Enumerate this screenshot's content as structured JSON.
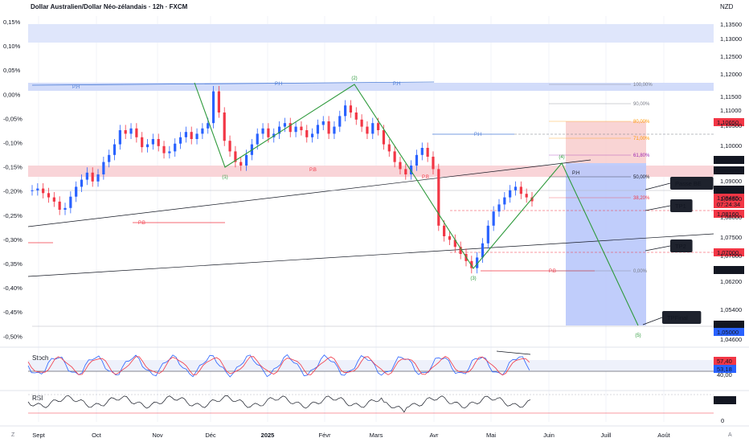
{
  "header": {
    "title": "Dollar Australien/Dollar Néo-zélandais · 12h · FXCM",
    "currency": "NZD"
  },
  "chart_data": {
    "type": "candlestick",
    "symbol": "AUDNZD",
    "timeframe": "12h",
    "x_ticks": [
      "Sept",
      "Oct",
      "Nov",
      "Déc",
      "2025",
      "Févr",
      "Mars",
      "Avr",
      "Mai",
      "Juin",
      "Juill",
      "Août"
    ],
    "left_axis": [
      "0,15%",
      "0,10%",
      "0,05%",
      "0,00%",
      "-0,05%",
      "-0,10%",
      "-0,15%",
      "-0,20%",
      "-0,25%",
      "-0,30%",
      "-0,35%",
      "-0,40%",
      "-0,45%",
      "-0,50%"
    ],
    "right_axis": [
      "1,13500",
      "1,13000",
      "1,12500",
      "1,12000",
      "1,11500",
      "1,11000",
      "1,10500",
      "1,10000",
      "1,09500",
      "1,09000",
      "1,08500",
      "1,08000",
      "1,07500",
      "1,07000",
      "1,06500",
      "1,06200",
      "1,05400",
      "1,05000",
      "1,04600"
    ],
    "price_tags": [
      {
        "label": "1,10650",
        "color": "#f23645"
      },
      {
        "label": "1,09540",
        "color": "#131722"
      },
      {
        "label": "1,09229",
        "color": "#131722"
      },
      {
        "label": "1,08742",
        "color": "#131722"
      },
      {
        "label": "1,08485",
        "color": "#f23645"
      },
      {
        "label": "07:24:34",
        "color": "#f23645"
      },
      {
        "label": "1,08160",
        "color": "#f23645"
      },
      {
        "label": "1,07000",
        "color": "#f23645"
      },
      {
        "label": "1,06500",
        "color": "#131722"
      },
      {
        "label": "1,05000",
        "color": "#131722"
      },
      {
        "label": "1,05000",
        "color": "#2962ff"
      }
    ],
    "close_series": [
      1.088,
      1.0885,
      1.0872,
      1.086,
      1.0848,
      1.0825,
      1.083,
      1.0862,
      1.089,
      1.091,
      1.093,
      1.0905,
      1.0925,
      1.096,
      1.098,
      1.101,
      1.105,
      1.104,
      1.1055,
      1.103,
      1.1002,
      1.101,
      1.1025,
      1.1005,
      1.0985,
      1.099,
      1.1012,
      1.103,
      1.1045,
      1.1025,
      1.104,
      1.1055,
      1.107,
      1.116,
      1.11,
      1.102,
      1.099,
      1.096,
      1.095,
      1.098,
      1.101,
      1.104,
      1.1055,
      1.103,
      1.104,
      1.106,
      1.107,
      1.1045,
      1.106,
      1.105,
      1.103,
      1.104,
      1.1065,
      1.1075,
      1.104,
      1.106,
      1.109,
      1.112,
      1.11,
      1.108,
      1.106,
      1.104,
      1.107,
      1.105,
      1.101,
      1.099,
      1.096,
      1.094,
      1.0925,
      1.095,
      1.098,
      1.1,
      1.0975,
      1.094,
      1.078,
      1.075,
      1.074,
      1.072,
      1.07,
      1.068,
      1.066,
      1.069,
      1.073,
      1.078,
      1.082,
      1.084,
      1.086,
      1.088,
      1.089,
      1.087,
      1.086,
      1.0849
    ],
    "fib_levels": [
      {
        "label": "100,00%",
        "price": 1.118
      },
      {
        "label": "90,00%",
        "price": 1.113
      },
      {
        "label": "80,00%",
        "price": 1.1075
      },
      {
        "label": "71,00%",
        "price": 1.103
      },
      {
        "label": "61,80%",
        "price": 1.098
      },
      {
        "label": "50,00%",
        "price": 1.092
      },
      {
        "label": "38,20%",
        "price": 1.086
      },
      {
        "label": "0,00%",
        "price": 1.066
      }
    ],
    "wave_points": [
      {
        "label": "(1)",
        "price": 1.0945
      },
      {
        "label": "(2)",
        "price": 1.118
      },
      {
        "label": "(3)",
        "price": 1.066
      },
      {
        "label": "(4)",
        "price": 1.095
      },
      {
        "label": "(5)",
        "price": 1.05
      }
    ],
    "level_labels": [
      "P.H",
      "P.H",
      "P.H",
      "P.H",
      "P.H",
      "P.B",
      "P.B",
      "P.B",
      "P.B"
    ],
    "annotations": [
      "Passe BE",
      "TP1",
      "TP2",
      "TPFinal"
    ],
    "stoch": {
      "label": "Stoch",
      "values": [
        "57,40",
        "53,18",
        "40,00"
      ]
    },
    "rsi": {
      "label": "RSI",
      "value": "50,83",
      "zero": "0"
    }
  },
  "footer": {
    "left": "Z",
    "right": "A"
  }
}
